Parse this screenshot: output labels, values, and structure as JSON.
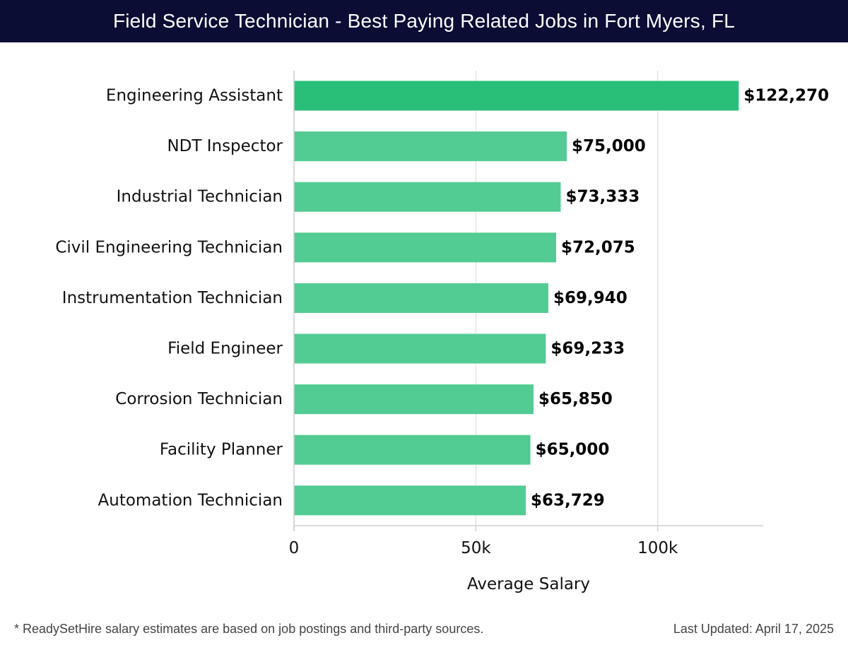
{
  "header": {
    "title": "Field Service Technician - Best Paying Related Jobs in Fort Myers, FL"
  },
  "colors": {
    "header_bg": "#0b0d35",
    "bar_top": "#2abf78",
    "bar": "#52cc92",
    "grid": "#e3e3e3",
    "axis": "#cfcfcf",
    "text": "#111111"
  },
  "chart_data": {
    "type": "bar",
    "orientation": "horizontal",
    "title": "Field Service Technician - Best Paying Related Jobs in Fort Myers, FL",
    "categories": [
      "Engineering Assistant",
      "NDT Inspector",
      "Industrial Technician",
      "Civil Engineering Technician",
      "Instrumentation Technician",
      "Field Engineer",
      "Corrosion Technician",
      "Facility Planner",
      "Automation Technician"
    ],
    "values": [
      122270,
      75000,
      73333,
      72075,
      69940,
      69233,
      65850,
      65000,
      63729
    ],
    "value_labels": [
      "$122,270",
      "$75,000",
      "$73,333",
      "$72,075",
      "$69,940",
      "$69,233",
      "$65,850",
      "$65,000",
      "$63,729"
    ],
    "xlabel": "Average Salary",
    "ylabel": "",
    "xlim": [
      0,
      129000
    ],
    "xticks": [
      0,
      50000,
      100000
    ],
    "xtick_labels": [
      "0",
      "50k",
      "100k"
    ],
    "grid": true
  },
  "footer": {
    "note": "* ReadySetHire salary estimates are based on job postings and third-party sources.",
    "updated": "Last Updated: April 17, 2025"
  }
}
